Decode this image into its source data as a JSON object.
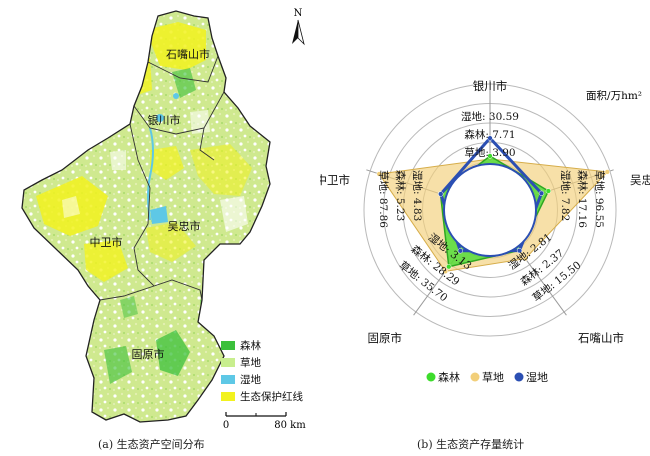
{
  "map_panel": {
    "north_label": "N",
    "cities": [
      "石嘴山市",
      "银川市",
      "吴忠市",
      "中卫市",
      "固原市"
    ],
    "legend": [
      {
        "label": "森林",
        "color": "#3cc03c"
      },
      {
        "label": "草地",
        "color": "#c8ee8e"
      },
      {
        "label": "湿地",
        "color": "#5ec8e6"
      },
      {
        "label": "生态保护红线",
        "color": "#f2f21e"
      }
    ],
    "scale_bar": {
      "start": "0",
      "end": "80 km"
    },
    "caption": "(a) 生态资产空间分布"
  },
  "chart_panel": {
    "unit_label": "面积/万hm²",
    "caption": "(b) 生态资产存量统计",
    "legend": [
      {
        "label": "森林",
        "color": "#3ddc2c"
      },
      {
        "label": "草地",
        "color": "#f2cf7a"
      },
      {
        "label": "湿地",
        "color": "#2b4fb3"
      }
    ]
  },
  "chart_data": {
    "type": "radar",
    "categories": [
      "银川市",
      "吴忠市",
      "石嘴山市",
      "固原市",
      "中卫市"
    ],
    "series": [
      {
        "name": "森林",
        "color": "#3ddc2c",
        "values": [
          7.71,
          17.16,
          2.37,
          28.29,
          5.23
        ]
      },
      {
        "name": "草地",
        "color": "#f2cf7a",
        "values": [
          3.9,
          96.55,
          15.5,
          35.7,
          87.86
        ]
      },
      {
        "name": "湿地",
        "color": "#2b4fb3",
        "values": [
          30.59,
          7.82,
          2.81,
          3.13,
          4.83
        ]
      }
    ],
    "value_labels": {
      "银川市": [
        "湿地: 30.59",
        "森林: 7.71",
        "草地: 3.90"
      ],
      "吴忠市": [
        "草地: 96.55",
        "森林: 17.16",
        "湿地: 7.82"
      ],
      "石嘴山市": [
        "湿地: 2.81",
        "森林: 2.37",
        "草地: 15.50"
      ],
      "固原市": [
        "湿地: 3.13",
        "森林: 28.29",
        "草地: 35.70"
      ],
      "中卫市": [
        "湿地: 4.83",
        "森林: 5.23",
        "草地: 87.86"
      ]
    }
  }
}
